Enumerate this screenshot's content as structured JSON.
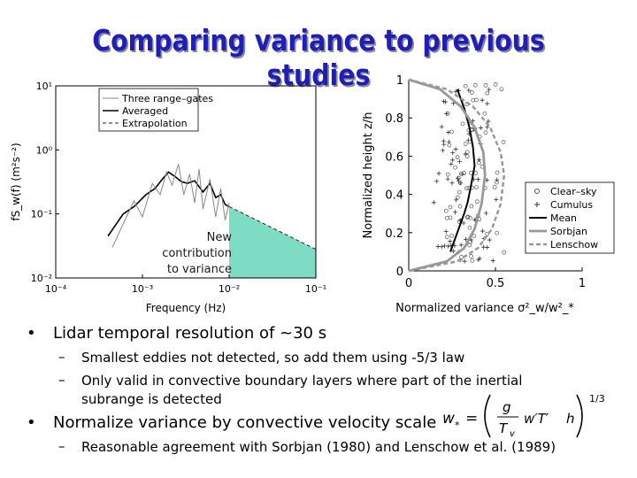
{
  "slide": {
    "title": "Comparing variance to previous studies",
    "bullets": [
      "Lidar temporal resolution of ~30 s",
      "Normalize variance by convective velocity scale"
    ],
    "sub_bullets_1": [
      "Smallest eddies not detected, so add them using -5/3 law",
      "Only valid in convective boundary layers where part of the inertial",
      "subrange is detected"
    ],
    "sub_bullets_2": [
      "Reasonable agreement with Sorbjan (1980) and Lenschow et al. (1989)"
    ],
    "bullet_char": "•",
    "dash_char": "–",
    "formula": {
      "lhs": "w",
      "sub": "*",
      "eq": "=",
      "g": "g",
      "T": "T",
      "v": "v",
      "mid": "w′T′",
      "h": "h",
      "exp": "1/3"
    }
  },
  "chart_data": [
    {
      "type": "line",
      "xlabel": "Frequency (Hz)",
      "ylabel": "fS_w(f) (m²s⁻²)",
      "xscale": "log",
      "yscale": "log",
      "xlim": [
        0.0001,
        0.1
      ],
      "ylim": [
        0.01,
        10
      ],
      "x_ticks": [
        "10⁻⁴",
        "10⁻³",
        "10⁻²",
        "10⁻¹"
      ],
      "y_ticks": [
        "10⁻²",
        "10⁻¹",
        "10⁰",
        "10¹"
      ],
      "legend": [
        "Three range–gates",
        "Averaged",
        "Extrapolation"
      ],
      "legend_position": "top-right",
      "annotation": [
        "New",
        "contribution",
        "to variance"
      ],
      "fill_color": "#7fdcc4",
      "series": [
        {
          "name": "Averaged",
          "x": [
            0.0004,
            0.0006,
            0.0008,
            0.0011,
            0.0014,
            0.0017,
            0.002,
            0.0024,
            0.0028,
            0.0033,
            0.004,
            0.005,
            0.006,
            0.007,
            0.008,
            0.009,
            0.01
          ],
          "y": [
            0.045,
            0.1,
            0.13,
            0.2,
            0.25,
            0.35,
            0.45,
            0.38,
            0.32,
            0.3,
            0.33,
            0.22,
            0.3,
            0.18,
            0.2,
            0.14,
            0.13
          ]
        },
        {
          "name": "Three range–gates",
          "x": [
            0.00045,
            0.0006,
            0.0008,
            0.001,
            0.0013,
            0.0016,
            0.0019,
            0.0022,
            0.0026,
            0.003,
            0.0035,
            0.004,
            0.0045,
            0.005,
            0.006,
            0.007,
            0.008,
            0.009,
            0.01
          ],
          "y": [
            0.03,
            0.07,
            0.16,
            0.09,
            0.3,
            0.2,
            0.45,
            0.28,
            0.6,
            0.2,
            0.42,
            0.15,
            0.5,
            0.12,
            0.35,
            0.09,
            0.25,
            0.08,
            0.15
          ]
        },
        {
          "name": "Extrapolation",
          "x": [
            0.01,
            0.1
          ],
          "y": [
            0.13,
            0.028
          ]
        }
      ]
    },
    {
      "type": "scatter",
      "xlabel": "Normalized variance σ²_w/w²_*",
      "ylabel": "Normalized height z/h",
      "xlim": [
        0,
        1
      ],
      "ylim": [
        0,
        1
      ],
      "x_ticks": [
        "0",
        "0.5",
        "1"
      ],
      "y_ticks": [
        "0",
        "0.2",
        "0.4",
        "0.6",
        "0.8",
        "1"
      ],
      "legend": [
        "Clear–sky",
        "Cumulus",
        "Mean",
        "Sorbjan",
        "Lenschow"
      ],
      "legend_position": "right",
      "series": [
        {
          "name": "Mean",
          "x": [
            0.24,
            0.26,
            0.28,
            0.3,
            0.32,
            0.34,
            0.36,
            0.38,
            0.37,
            0.35,
            0.32,
            0.28
          ],
          "y": [
            0.1,
            0.15,
            0.2,
            0.25,
            0.3,
            0.36,
            0.45,
            0.55,
            0.65,
            0.75,
            0.85,
            0.95
          ]
        },
        {
          "name": "Sorbjan",
          "x": [
            0.0,
            0.22,
            0.32,
            0.38,
            0.42,
            0.44,
            0.43,
            0.38,
            0.3,
            0.18,
            0.0
          ],
          "y": [
            0.0,
            0.05,
            0.12,
            0.22,
            0.35,
            0.5,
            0.62,
            0.75,
            0.86,
            0.95,
            1.0
          ]
        },
        {
          "name": "Lenschow",
          "x": [
            0.0,
            0.28,
            0.4,
            0.48,
            0.53,
            0.55,
            0.53,
            0.47,
            0.37,
            0.22,
            0.0
          ],
          "y": [
            0.0,
            0.05,
            0.12,
            0.22,
            0.35,
            0.5,
            0.62,
            0.75,
            0.86,
            0.95,
            1.0
          ]
        }
      ]
    }
  ]
}
